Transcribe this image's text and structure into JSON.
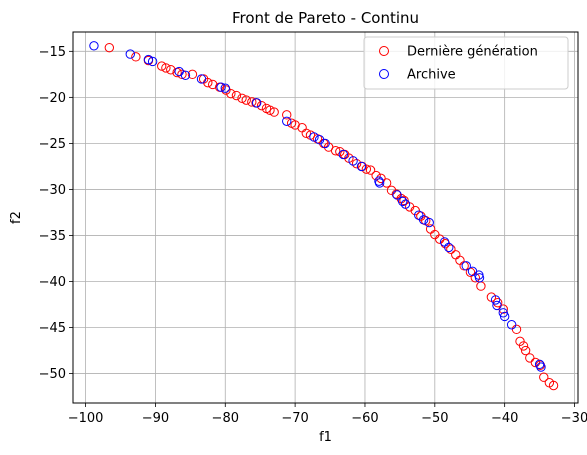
{
  "chart_data": {
    "type": "scatter",
    "title": "Front de Pareto - Continu",
    "xlabel": "f1",
    "ylabel": "f2",
    "xlim": [
      -101.8,
      -29.5
    ],
    "ylim": [
      -53.2,
      -12.9
    ],
    "xticks": [
      -100,
      -90,
      -80,
      -70,
      -60,
      -50,
      -40,
      -30
    ],
    "yticks": [
      -15,
      -20,
      -25,
      -30,
      -35,
      -40,
      -45,
      -50
    ],
    "xtick_labels": [
      "−100",
      "−90",
      "−80",
      "−70",
      "−60",
      "−50",
      "−40",
      "−30"
    ],
    "ytick_labels": [
      "−15",
      "−20",
      "−25",
      "−30",
      "−35",
      "−40",
      "−45",
      "−50"
    ],
    "grid": true,
    "legend_position": "top-right",
    "marker": "open-circle",
    "series": [
      {
        "name": "Dernière génération",
        "color": "#ff0000",
        "points": [
          [
            -96.6,
            -14.6
          ],
          [
            -92.8,
            -15.6
          ],
          [
            -91.0,
            -16.0
          ],
          [
            -89.1,
            -16.6
          ],
          [
            -88.5,
            -16.8
          ],
          [
            -87.8,
            -17.0
          ],
          [
            -86.9,
            -17.3
          ],
          [
            -86.2,
            -17.5
          ],
          [
            -84.7,
            -17.5
          ],
          [
            -83.1,
            -18.0
          ],
          [
            -82.5,
            -18.4
          ],
          [
            -81.8,
            -18.6
          ],
          [
            -80.8,
            -18.9
          ],
          [
            -79.9,
            -19.2
          ],
          [
            -79.2,
            -19.6
          ],
          [
            -78.4,
            -19.8
          ],
          [
            -77.6,
            -20.1
          ],
          [
            -77.0,
            -20.3
          ],
          [
            -76.2,
            -20.5
          ],
          [
            -75.6,
            -20.6
          ],
          [
            -74.8,
            -20.9
          ],
          [
            -74.1,
            -21.2
          ],
          [
            -73.6,
            -21.4
          ],
          [
            -73.0,
            -21.6
          ],
          [
            -71.2,
            -21.9
          ],
          [
            -70.5,
            -22.8
          ],
          [
            -70.0,
            -23.0
          ],
          [
            -69.0,
            -23.3
          ],
          [
            -68.4,
            -23.9
          ],
          [
            -67.8,
            -24.1
          ],
          [
            -66.8,
            -24.5
          ],
          [
            -65.9,
            -25.0
          ],
          [
            -65.2,
            -25.4
          ],
          [
            -64.2,
            -25.8
          ],
          [
            -63.6,
            -25.9
          ],
          [
            -62.9,
            -26.2
          ],
          [
            -62.3,
            -26.6
          ],
          [
            -61.2,
            -27.2
          ],
          [
            -60.4,
            -27.5
          ],
          [
            -59.8,
            -27.8
          ],
          [
            -59.2,
            -27.9
          ],
          [
            -58.4,
            -28.5
          ],
          [
            -57.7,
            -28.8
          ],
          [
            -56.9,
            -29.3
          ],
          [
            -56.2,
            -30.1
          ],
          [
            -55.5,
            -30.5
          ],
          [
            -54.8,
            -31.0
          ],
          [
            -54.4,
            -31.2
          ],
          [
            -53.6,
            -31.9
          ],
          [
            -52.8,
            -32.3
          ],
          [
            -52.0,
            -32.9
          ],
          [
            -51.3,
            -33.4
          ],
          [
            -50.6,
            -34.3
          ],
          [
            -50.0,
            -34.9
          ],
          [
            -49.3,
            -35.4
          ],
          [
            -48.5,
            -35.9
          ],
          [
            -47.7,
            -36.5
          ],
          [
            -47.0,
            -37.1
          ],
          [
            -46.4,
            -37.7
          ],
          [
            -45.8,
            -38.3
          ],
          [
            -44.9,
            -39.0
          ],
          [
            -44.2,
            -39.6
          ],
          [
            -43.4,
            -40.5
          ],
          [
            -41.9,
            -41.7
          ],
          [
            -41.0,
            -42.3
          ],
          [
            -40.2,
            -43.0
          ],
          [
            -38.3,
            -45.2
          ],
          [
            -37.8,
            -46.5
          ],
          [
            -37.3,
            -47.0
          ],
          [
            -37.0,
            -47.5
          ],
          [
            -36.4,
            -48.3
          ],
          [
            -35.6,
            -48.8
          ],
          [
            -34.9,
            -49.1
          ],
          [
            -34.4,
            -50.4
          ],
          [
            -33.6,
            -51.0
          ],
          [
            -33.0,
            -51.3
          ]
        ]
      },
      {
        "name": "Archive",
        "color": "#0000ff",
        "points": [
          [
            -98.8,
            -14.4
          ],
          [
            -93.6,
            -15.3
          ],
          [
            -91.0,
            -15.9
          ],
          [
            -90.4,
            -16.1
          ],
          [
            -86.6,
            -17.2
          ],
          [
            -85.7,
            -17.6
          ],
          [
            -83.4,
            -18.0
          ],
          [
            -80.6,
            -18.9
          ],
          [
            -80.0,
            -19.0
          ],
          [
            -75.5,
            -20.6
          ],
          [
            -71.2,
            -22.6
          ],
          [
            -67.3,
            -24.3
          ],
          [
            -66.5,
            -24.6
          ],
          [
            -65.7,
            -25.0
          ],
          [
            -63.1,
            -26.2
          ],
          [
            -61.7,
            -26.9
          ],
          [
            -60.5,
            -27.5
          ],
          [
            -58.0,
            -29.1
          ],
          [
            -57.9,
            -29.3
          ],
          [
            -55.4,
            -30.6
          ],
          [
            -54.6,
            -31.3
          ],
          [
            -54.2,
            -31.6
          ],
          [
            -52.3,
            -32.8
          ],
          [
            -51.6,
            -33.3
          ],
          [
            -50.8,
            -33.6
          ],
          [
            -48.6,
            -35.7
          ],
          [
            -48.0,
            -36.3
          ],
          [
            -45.5,
            -38.3
          ],
          [
            -44.6,
            -38.9
          ],
          [
            -43.7,
            -39.3
          ],
          [
            -43.6,
            -39.6
          ],
          [
            -41.3,
            -42.0
          ],
          [
            -41.1,
            -42.6
          ],
          [
            -40.2,
            -43.4
          ],
          [
            -40.0,
            -43.8
          ],
          [
            -39.0,
            -44.7
          ],
          [
            -35.0,
            -49.0
          ],
          [
            -34.8,
            -49.3
          ]
        ]
      }
    ]
  }
}
